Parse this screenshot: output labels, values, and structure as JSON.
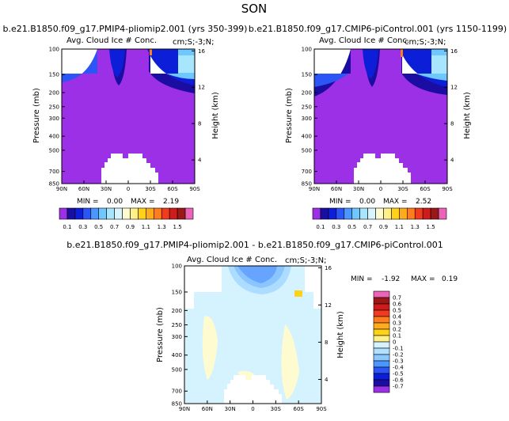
{
  "season": "SON",
  "colors": {
    "plev_bg": "#9b30e6",
    "diff_bg": "#d4f3ff",
    "mask": "#ffffff"
  },
  "levels_abs": [
    "0.1",
    "0.3",
    "0.5",
    "0.7",
    "0.9",
    "1.1",
    "1.3",
    "1.5"
  ],
  "abs_colors": [
    "#9b30e6",
    "#1c0da2",
    "#0d1ed8",
    "#2b55f5",
    "#4b97ff",
    "#6ec8ff",
    "#a8e6ff",
    "#d8f4ff",
    "#fffbd0",
    "#fff08a",
    "#ffd21a",
    "#ffac1c",
    "#ff7d1c",
    "#f23a1c",
    "#cf1b1b",
    "#9c1818",
    "#ec64b7"
  ],
  "levels_diff": [
    "0.7",
    "0.6",
    "0.5",
    "0.4",
    "0.3",
    "0.2",
    "0.1",
    "0",
    "-0.1",
    "-0.2",
    "-0.3",
    "-0.4",
    "-0.5",
    "-0.6",
    "-0.7"
  ],
  "diff_colors": [
    "#ec64b7",
    "#9c1818",
    "#cf1b1b",
    "#f23a1c",
    "#ff7d1c",
    "#ffac1c",
    "#ffd21a",
    "#fff08a",
    "#d4f3ff",
    "#b0e2ff",
    "#8ac8ff",
    "#4b97ff",
    "#2b55f5",
    "#0d1ed8",
    "#1c0da2",
    "#9b30e6"
  ],
  "chart_data": [
    {
      "type": "heatmap",
      "title": "b.e21.B1850.f09_g17.PMIP4-pliomip2.001 (yrs 350-399)",
      "subtitle_left": "Avg. Cloud Ice # Conc.",
      "subtitle_right": "cm;S;-3;N;",
      "xlabel": "",
      "ylabel": "Pressure (mb)",
      "ylabel_right": "Height (km)",
      "x_ticks": [
        "90N",
        "60N",
        "30N",
        "0",
        "30S",
        "60S",
        "90S"
      ],
      "y_ticks": [
        "100",
        "150",
        "200",
        "250",
        "300",
        "400",
        "500",
        "700",
        "850"
      ],
      "height_ticks": [
        "16",
        "12",
        "8",
        "4"
      ],
      "xlim": [
        -90,
        90
      ],
      "ylim": [
        850,
        100
      ],
      "min_text": "MIN =",
      "min": "0.00",
      "max_text": "MAX =",
      "max": "2.19"
    },
    {
      "type": "heatmap",
      "title": "b.e21.B1850.f09_g17.CMIP6-piControl.001 (yrs 1150-1199)",
      "subtitle_left": "Avg. Cloud Ice # Conc.",
      "subtitle_right": "cm;S;-3;N;",
      "xlabel": "",
      "ylabel": "Pressure (mb)",
      "ylabel_right": "Height (km)",
      "x_ticks": [
        "90N",
        "60N",
        "30N",
        "0",
        "30S",
        "60S",
        "90S"
      ],
      "y_ticks": [
        "100",
        "150",
        "200",
        "250",
        "300",
        "400",
        "500",
        "700",
        "850"
      ],
      "height_ticks": [
        "16",
        "12",
        "8",
        "4"
      ],
      "xlim": [
        -90,
        90
      ],
      "ylim": [
        850,
        100
      ],
      "min_text": "MIN =",
      "min": "0.00",
      "max_text": "MAX =",
      "max": "2.52"
    },
    {
      "type": "heatmap",
      "title": "b.e21.B1850.f09_g17.PMIP4-pliomip2.001 - b.e21.B1850.f09_g17.CMIP6-piControl.001",
      "subtitle_left": "Avg. Cloud Ice # Conc.",
      "subtitle_right": "cm;S;-3;N;",
      "xlabel": "",
      "ylabel": "Pressure (mb)",
      "ylabel_right": "Height (km)",
      "x_ticks": [
        "90N",
        "60N",
        "30N",
        "0",
        "30S",
        "60S",
        "90S"
      ],
      "y_ticks": [
        "100",
        "150",
        "200",
        "250",
        "300",
        "400",
        "500",
        "700",
        "850"
      ],
      "height_ticks": [
        "16",
        "12",
        "8",
        "4"
      ],
      "xlim": [
        -90,
        90
      ],
      "ylim": [
        850,
        100
      ],
      "min_text": "MIN =",
      "min": "-1.92",
      "max_text": "MAX =",
      "max": "0.19"
    }
  ]
}
